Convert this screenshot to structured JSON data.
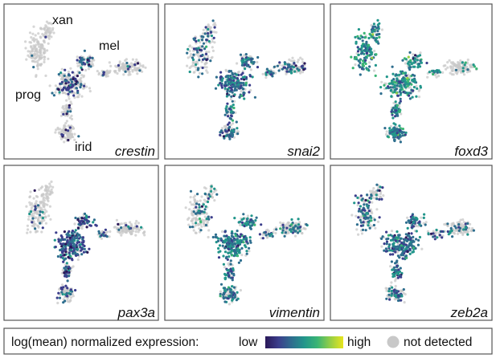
{
  "figure": {
    "panels": [
      {
        "gene": "crestin",
        "populations": [
          "xan",
          "mel",
          "prog",
          "irid"
        ]
      },
      {
        "gene": "snai2",
        "populations": []
      },
      {
        "gene": "foxd3",
        "populations": []
      },
      {
        "gene": "pax3a",
        "populations": []
      },
      {
        "gene": "vimentin",
        "populations": []
      },
      {
        "gene": "zeb2a",
        "populations": []
      }
    ],
    "legend": {
      "title": "log(mean) normalized expression:",
      "low_label": "low",
      "high_label": "high",
      "not_detected_label": "not detected",
      "not_detected_color": "#c8c8c8",
      "colormap": [
        "#2a1858",
        "#3b3e8c",
        "#2e6e8e",
        "#22968b",
        "#3bb574",
        "#98cf44",
        "#e8e51e"
      ]
    }
  }
}
